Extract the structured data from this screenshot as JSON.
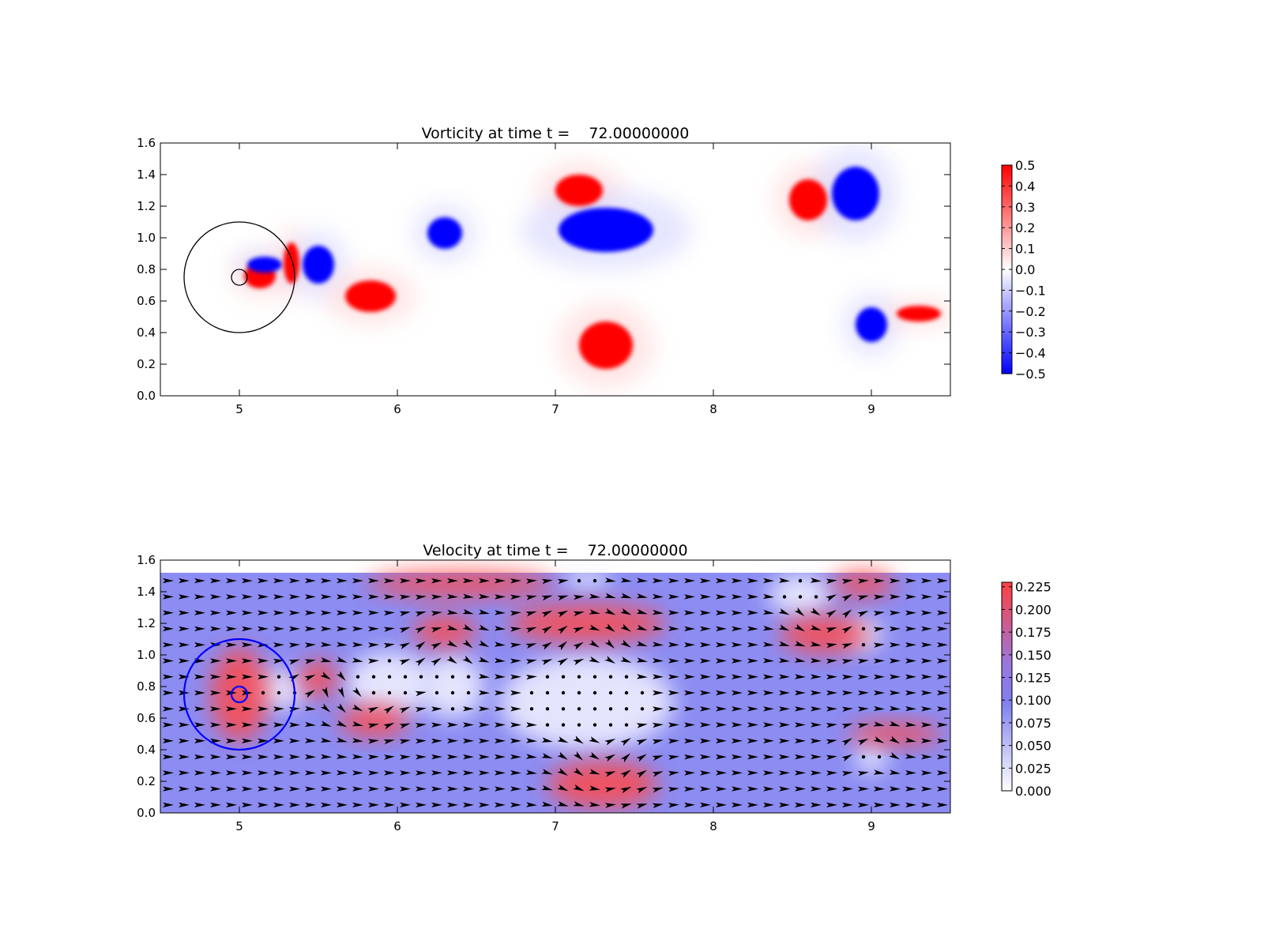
{
  "chart_data": [
    {
      "type": "heatmap",
      "title": "Vorticity at time t =    72.00000000",
      "xlabel": "",
      "ylabel": "",
      "xlim": [
        4.5,
        9.5
      ],
      "ylim": [
        0.0,
        1.6
      ],
      "xticks": [
        "5",
        "6",
        "7",
        "8",
        "9"
      ],
      "yticks": [
        "0.0",
        "0.2",
        "0.4",
        "0.6",
        "0.8",
        "1.0",
        "1.2",
        "1.4",
        "1.6"
      ],
      "colorbar": {
        "min": -0.5,
        "max": 0.5,
        "colormap": "bwr",
        "ticks": [
          "−0.5",
          "−0.4",
          "−0.3",
          "−0.2",
          "−0.1",
          "0.0",
          "0.1",
          "0.2",
          "0.3",
          "0.4",
          "0.5"
        ]
      },
      "circles": [
        {
          "cx": 5.0,
          "cy": 0.75,
          "r": 0.35,
          "color": "#000000"
        },
        {
          "cx": 5.0,
          "cy": 0.75,
          "r": 0.05,
          "color": "#000000"
        }
      ],
      "vortices": [
        {
          "x": 5.13,
          "y": 0.76,
          "rx": 0.1,
          "ry": 0.08,
          "value": 0.5
        },
        {
          "x": 5.16,
          "y": 0.83,
          "rx": 0.11,
          "ry": 0.05,
          "value": -0.5
        },
        {
          "x": 5.33,
          "y": 0.84,
          "rx": 0.05,
          "ry": 0.13,
          "value": 0.5
        },
        {
          "x": 5.5,
          "y": 0.83,
          "rx": 0.1,
          "ry": 0.12,
          "value": -0.5
        },
        {
          "x": 5.83,
          "y": 0.63,
          "rx": 0.16,
          "ry": 0.1,
          "value": 0.5
        },
        {
          "x": 6.3,
          "y": 1.03,
          "rx": 0.11,
          "ry": 0.1,
          "value": -0.5
        },
        {
          "x": 7.15,
          "y": 1.3,
          "rx": 0.15,
          "ry": 0.1,
          "value": 0.5
        },
        {
          "x": 7.32,
          "y": 1.05,
          "rx": 0.3,
          "ry": 0.14,
          "value": -0.5
        },
        {
          "x": 7.32,
          "y": 0.32,
          "rx": 0.17,
          "ry": 0.15,
          "value": 0.5
        },
        {
          "x": 8.6,
          "y": 1.24,
          "rx": 0.12,
          "ry": 0.13,
          "value": 0.5
        },
        {
          "x": 8.9,
          "y": 1.28,
          "rx": 0.15,
          "ry": 0.17,
          "value": -0.5
        },
        {
          "x": 9.0,
          "y": 0.45,
          "rx": 0.1,
          "ry": 0.11,
          "value": -0.5
        },
        {
          "x": 9.3,
          "y": 0.52,
          "rx": 0.14,
          "ry": 0.05,
          "value": 0.5
        }
      ]
    },
    {
      "type": "heatmap",
      "title": "Velocity at time t =    72.00000000",
      "xlabel": "",
      "ylabel": "",
      "xlim": [
        4.5,
        9.5
      ],
      "ylim": [
        0.0,
        1.6
      ],
      "data_ylim": [
        0.0,
        1.52
      ],
      "xticks": [
        "5",
        "6",
        "7",
        "8",
        "9"
      ],
      "yticks": [
        "0.0",
        "0.2",
        "0.4",
        "0.6",
        "0.8",
        "1.0",
        "1.2",
        "1.4",
        "1.6"
      ],
      "colorbar": {
        "min": 0.0,
        "max": 0.23,
        "colormap": "white-blue-red",
        "ticks": [
          "0.000",
          "0.025",
          "0.050",
          "0.075",
          "0.100",
          "0.125",
          "0.150",
          "0.175",
          "0.200",
          "0.225"
        ]
      },
      "overlay": "quiver",
      "circles": [
        {
          "cx": 5.0,
          "cy": 0.75,
          "r": 0.35,
          "color": "#0000ff"
        },
        {
          "cx": 5.0,
          "cy": 0.75,
          "r": 0.05,
          "color": "#0000ff"
        }
      ],
      "fast_regions": [
        {
          "x": 5.0,
          "y": 0.75,
          "rx": 0.18,
          "ry": 0.3
        },
        {
          "x": 5.5,
          "y": 0.85,
          "rx": 0.12,
          "ry": 0.12
        },
        {
          "x": 5.85,
          "y": 0.58,
          "rx": 0.22,
          "ry": 0.1
        },
        {
          "x": 6.3,
          "y": 1.15,
          "rx": 0.2,
          "ry": 0.1
        },
        {
          "x": 7.2,
          "y": 1.2,
          "rx": 0.5,
          "ry": 0.12
        },
        {
          "x": 6.4,
          "y": 1.45,
          "rx": 0.6,
          "ry": 0.08
        },
        {
          "x": 7.3,
          "y": 0.18,
          "rx": 0.35,
          "ry": 0.15
        },
        {
          "x": 8.7,
          "y": 1.13,
          "rx": 0.28,
          "ry": 0.12
        },
        {
          "x": 8.95,
          "y": 1.45,
          "rx": 0.2,
          "ry": 0.08
        },
        {
          "x": 9.15,
          "y": 0.5,
          "rx": 0.3,
          "ry": 0.07
        }
      ],
      "slow_regions": [
        {
          "x": 5.25,
          "y": 0.78,
          "rx": 0.18,
          "ry": 0.12
        },
        {
          "x": 5.95,
          "y": 0.82,
          "rx": 0.28,
          "ry": 0.2
        },
        {
          "x": 6.35,
          "y": 0.8,
          "rx": 0.2,
          "ry": 0.2
        },
        {
          "x": 7.2,
          "y": 0.7,
          "rx": 0.55,
          "ry": 0.3
        },
        {
          "x": 7.2,
          "y": 1.48,
          "rx": 0.15,
          "ry": 0.06
        },
        {
          "x": 8.55,
          "y": 1.38,
          "rx": 0.2,
          "ry": 0.13
        },
        {
          "x": 8.95,
          "y": 1.13,
          "rx": 0.12,
          "ry": 0.1
        },
        {
          "x": 9.0,
          "y": 0.35,
          "rx": 0.1,
          "ry": 0.1
        }
      ]
    }
  ]
}
